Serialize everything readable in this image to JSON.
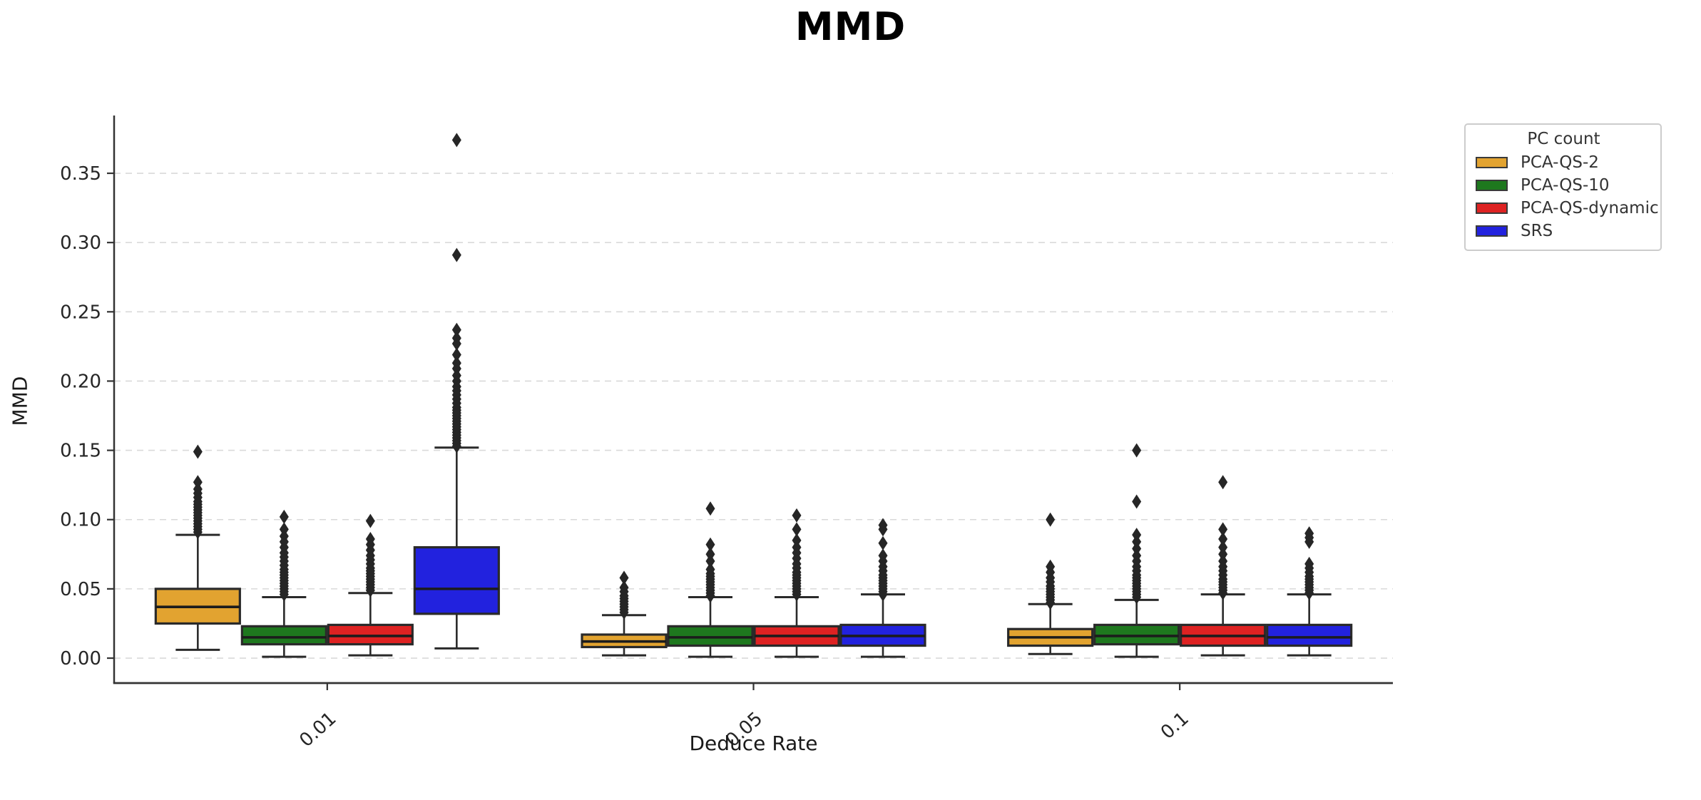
{
  "chart_data": {
    "type": "box",
    "title": "MMD",
    "xlabel": "Deduce Rate",
    "ylabel": "MMD",
    "categories": [
      "0.01",
      "0.05",
      "0.1"
    ],
    "y_ticks": [
      0.0,
      0.05,
      0.1,
      0.15,
      0.2,
      0.25,
      0.3,
      0.35
    ],
    "y_tick_labels": [
      "0.00",
      "0.05",
      "0.10",
      "0.15",
      "0.20",
      "0.25",
      "0.30",
      "0.35"
    ],
    "ylim": [
      -0.018,
      0.3917
    ],
    "grid": "horizontal-dashed",
    "legend_position": "upper-right-outside",
    "legend": {
      "title": "PC count",
      "entries": [
        {
          "label": "PCA-QS-2",
          "color": "#E2A330"
        },
        {
          "label": "PCA-QS-10",
          "color": "#1E781E"
        },
        {
          "label": "PCA-QS-dynamic",
          "color": "#DE2222"
        },
        {
          "label": "SRS",
          "color": "#2222DE"
        }
      ]
    },
    "series": [
      {
        "name": "PCA-QS-2",
        "color": "#E2A330",
        "boxes": [
          {
            "category": "0.01",
            "whislo": 0.006,
            "q1": 0.025,
            "med": 0.037,
            "q3": 0.05,
            "whishi": 0.089,
            "outliers": [
              0.091,
              0.093,
              0.095,
              0.097,
              0.099,
              0.101,
              0.103,
              0.105,
              0.107,
              0.109,
              0.111,
              0.113,
              0.116,
              0.119,
              0.122,
              0.127,
              0.149
            ]
          },
          {
            "category": "0.05",
            "whislo": 0.002,
            "q1": 0.008,
            "med": 0.012,
            "q3": 0.017,
            "whishi": 0.031,
            "outliers": [
              0.033,
              0.035,
              0.037,
              0.039,
              0.041,
              0.043,
              0.045,
              0.048,
              0.051,
              0.058
            ]
          },
          {
            "category": "0.1",
            "whislo": 0.003,
            "q1": 0.009,
            "med": 0.015,
            "q3": 0.021,
            "whishi": 0.039,
            "outliers": [
              0.04,
              0.042,
              0.044,
              0.046,
              0.048,
              0.05,
              0.052,
              0.055,
              0.058,
              0.062,
              0.066,
              0.1
            ]
          }
        ]
      },
      {
        "name": "PCA-QS-10",
        "color": "#1E781E",
        "boxes": [
          {
            "category": "0.01",
            "whislo": 0.001,
            "q1": 0.01,
            "med": 0.015,
            "q3": 0.023,
            "whishi": 0.044,
            "outliers": [
              0.046,
              0.048,
              0.05,
              0.052,
              0.054,
              0.056,
              0.058,
              0.06,
              0.062,
              0.064,
              0.067,
              0.07,
              0.073,
              0.076,
              0.08,
              0.084,
              0.088,
              0.093,
              0.102
            ]
          },
          {
            "category": "0.05",
            "whislo": 0.001,
            "q1": 0.009,
            "med": 0.015,
            "q3": 0.023,
            "whishi": 0.044,
            "outliers": [
              0.045,
              0.047,
              0.049,
              0.051,
              0.053,
              0.055,
              0.057,
              0.059,
              0.061,
              0.064,
              0.07,
              0.075,
              0.082,
              0.108
            ]
          },
          {
            "category": "0.1",
            "whislo": 0.001,
            "q1": 0.01,
            "med": 0.016,
            "q3": 0.024,
            "whishi": 0.042,
            "outliers": [
              0.044,
              0.046,
              0.048,
              0.05,
              0.052,
              0.054,
              0.056,
              0.058,
              0.06,
              0.063,
              0.066,
              0.07,
              0.074,
              0.079,
              0.084,
              0.089,
              0.113,
              0.15
            ]
          }
        ]
      },
      {
        "name": "PCA-QS-dynamic",
        "color": "#DE2222",
        "boxes": [
          {
            "category": "0.01",
            "whislo": 0.002,
            "q1": 0.01,
            "med": 0.016,
            "q3": 0.024,
            "whishi": 0.047,
            "outliers": [
              0.049,
              0.051,
              0.053,
              0.055,
              0.057,
              0.059,
              0.061,
              0.063,
              0.065,
              0.068,
              0.071,
              0.074,
              0.078,
              0.082,
              0.086,
              0.099
            ]
          },
          {
            "category": "0.05",
            "whislo": 0.001,
            "q1": 0.009,
            "med": 0.016,
            "q3": 0.023,
            "whishi": 0.044,
            "outliers": [
              0.046,
              0.048,
              0.05,
              0.052,
              0.054,
              0.056,
              0.058,
              0.06,
              0.062,
              0.065,
              0.068,
              0.072,
              0.076,
              0.08,
              0.085,
              0.093,
              0.103
            ]
          },
          {
            "category": "0.1",
            "whislo": 0.002,
            "q1": 0.009,
            "med": 0.016,
            "q3": 0.024,
            "whishi": 0.046,
            "outliers": [
              0.047,
              0.049,
              0.051,
              0.053,
              0.055,
              0.057,
              0.06,
              0.063,
              0.066,
              0.07,
              0.075,
              0.08,
              0.086,
              0.093,
              0.127
            ]
          }
        ]
      },
      {
        "name": "SRS",
        "color": "#2222DE",
        "boxes": [
          {
            "category": "0.01",
            "whislo": 0.007,
            "q1": 0.032,
            "med": 0.05,
            "q3": 0.08,
            "whishi": 0.152,
            "outliers": [
              0.153,
              0.155,
              0.157,
              0.159,
              0.161,
              0.163,
              0.165,
              0.167,
              0.169,
              0.171,
              0.173,
              0.175,
              0.177,
              0.179,
              0.181,
              0.184,
              0.187,
              0.19,
              0.193,
              0.196,
              0.2,
              0.204,
              0.209,
              0.213,
              0.219,
              0.227,
              0.231,
              0.237,
              0.291,
              0.374
            ]
          },
          {
            "category": "0.05",
            "whislo": 0.001,
            "q1": 0.009,
            "med": 0.016,
            "q3": 0.024,
            "whishi": 0.046,
            "outliers": [
              0.046,
              0.048,
              0.05,
              0.052,
              0.054,
              0.056,
              0.058,
              0.06,
              0.063,
              0.066,
              0.07,
              0.074,
              0.083,
              0.093,
              0.096
            ]
          },
          {
            "category": "0.1",
            "whislo": 0.002,
            "q1": 0.009,
            "med": 0.015,
            "q3": 0.024,
            "whishi": 0.046,
            "outliers": [
              0.047,
              0.049,
              0.051,
              0.053,
              0.055,
              0.057,
              0.059,
              0.062,
              0.065,
              0.068,
              0.084,
              0.087,
              0.09
            ]
          }
        ]
      }
    ]
  },
  "colors": {
    "box_edge": "#2a2a2a",
    "median": "#1c1c1c",
    "whisker": "#2a2a2a",
    "outlier": "#262626",
    "gridline": "#d9d9d9",
    "spine": "#333333",
    "tick_label": "#262626"
  }
}
